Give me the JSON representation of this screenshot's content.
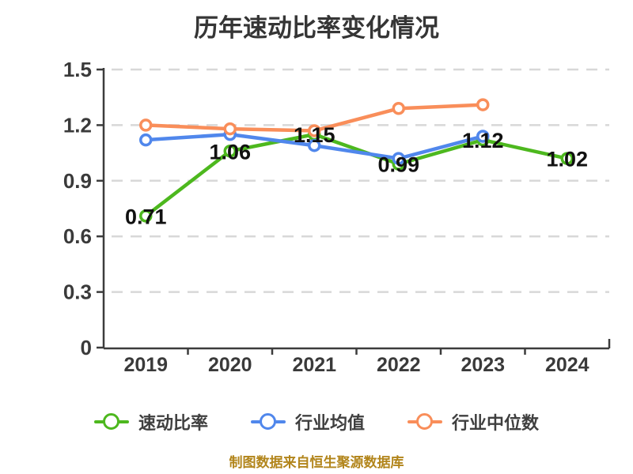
{
  "title": "历年速动比率变化情况",
  "footer": "制图数据来自恒生聚源数据库",
  "colors": {
    "quick_ratio": "#4db81e",
    "industry_mean": "#5087ec",
    "industry_median": "#f98e5a",
    "grid": "#d8d8d8",
    "axis": "#3c3c3c",
    "tick_label": "#3a3a3a",
    "data_label": "#111111",
    "title_text": "#353535",
    "footer_text": "#B2851B",
    "marker_fill": "#ffffff"
  },
  "chart_data": {
    "type": "line",
    "title": "历年速动比率变化情况",
    "categories": [
      "2019",
      "2020",
      "2021",
      "2022",
      "2023",
      "2024"
    ],
    "series": [
      {
        "id": "quick-ratio",
        "name": "速动比率",
        "color": "#4db81e",
        "values": [
          0.71,
          1.06,
          1.15,
          0.99,
          1.12,
          1.02
        ],
        "data_labels": [
          "0.71",
          "1.06",
          "1.15",
          "0.99",
          "1.12",
          "1.02"
        ]
      },
      {
        "id": "industry-mean",
        "name": "行业均值",
        "color": "#5087ec",
        "values": [
          1.12,
          1.15,
          1.09,
          1.02,
          1.14,
          null
        ],
        "data_labels": null
      },
      {
        "id": "industry-median",
        "name": "行业中位数",
        "color": "#f98e5a",
        "values": [
          1.2,
          1.18,
          1.17,
          1.29,
          1.31,
          null
        ],
        "data_labels": null
      }
    ],
    "xlabel": "",
    "ylabel": "",
    "ylim": [
      0,
      1.5
    ],
    "yticks": [
      0,
      0.3,
      0.6,
      0.9,
      1.2,
      1.5
    ],
    "ytick_labels": [
      "0",
      "0.3",
      "0.6",
      "0.9",
      "1.2",
      "1.5"
    ],
    "grid": "horizontal-dashed",
    "legend_position": "bottom"
  }
}
